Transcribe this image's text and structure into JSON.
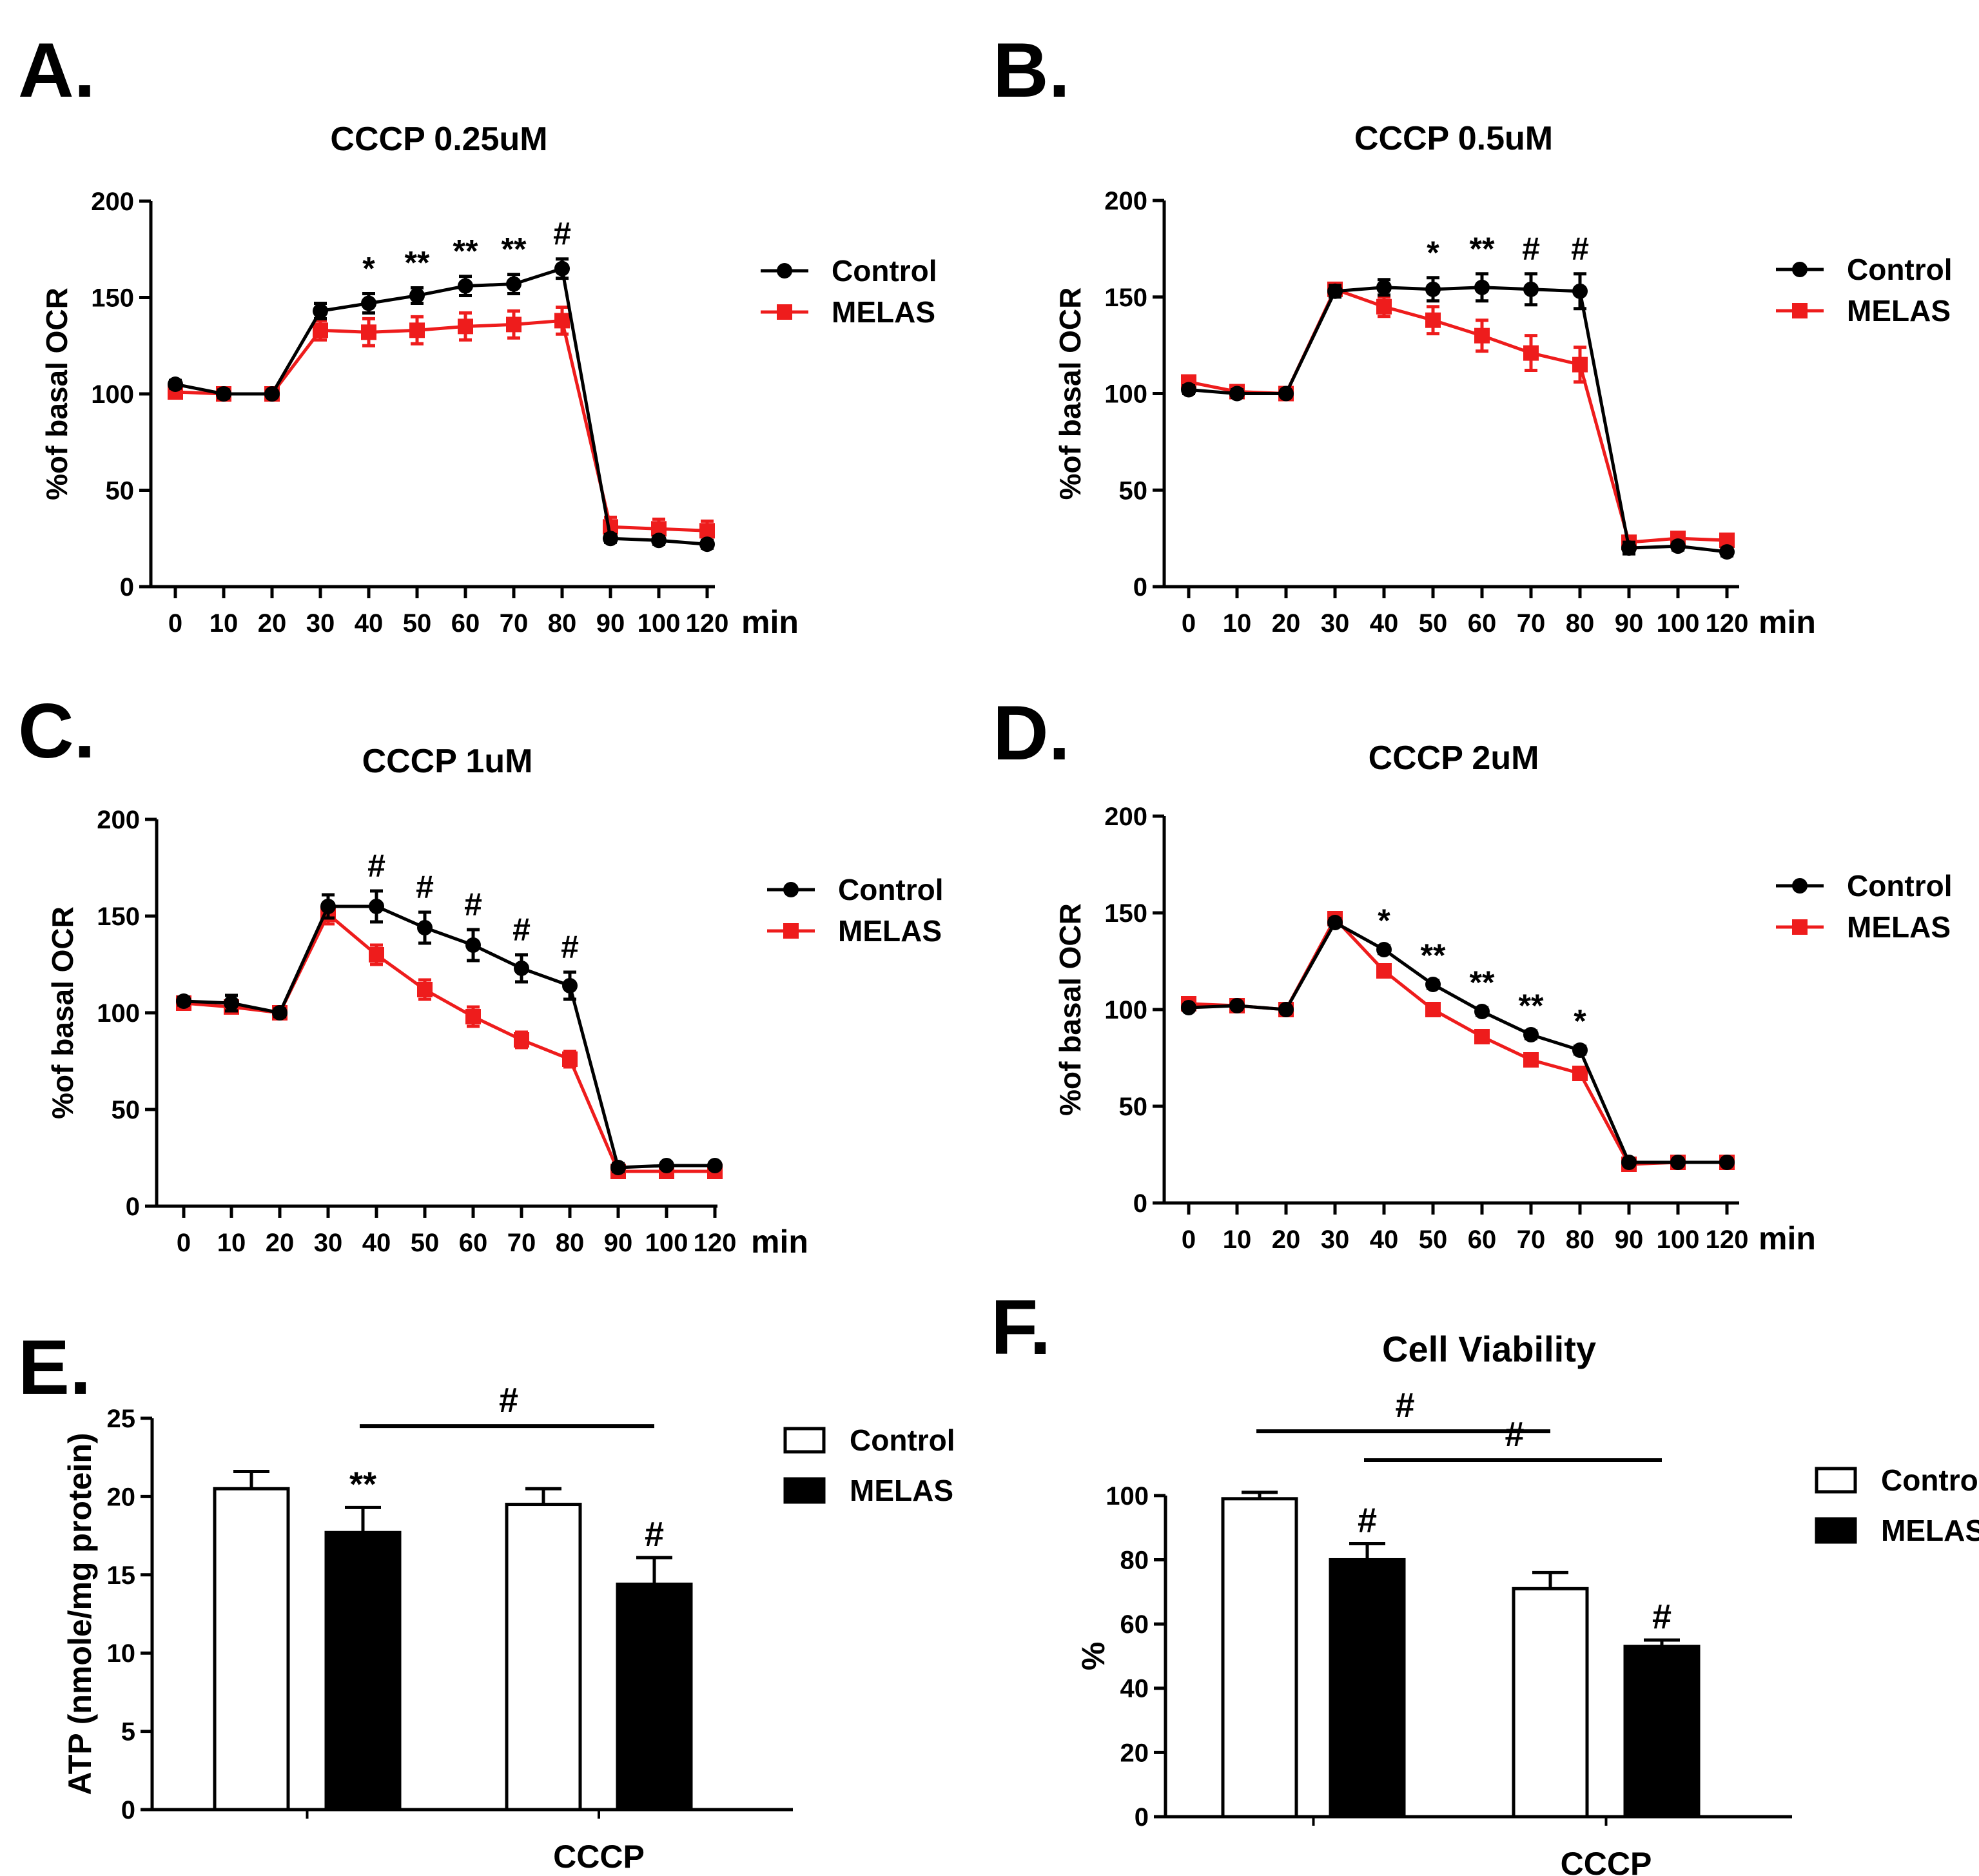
{
  "colors": {
    "control": "#000000",
    "melas": "#ee1c1c",
    "axis": "#000000",
    "bar_control_fill": "#ffffff",
    "bar_melas_fill": "#000000"
  },
  "chart_data": [
    {
      "id": "A",
      "panel_label": "A.",
      "type": "line",
      "title": "CCCP 0.25uM",
      "ylabel": "%of basal OCR",
      "xlabel": "min",
      "x": [
        0,
        10,
        20,
        30,
        40,
        50,
        60,
        70,
        80,
        90,
        100,
        120
      ],
      "xticklabels": [
        "0",
        "10",
        "20",
        "30",
        "40",
        "50",
        "60",
        "70",
        "80",
        "90",
        "100",
        "120"
      ],
      "ylim": [
        0,
        200
      ],
      "yticks": [
        0,
        50,
        100,
        150,
        200
      ],
      "legend": [
        "Control",
        "MELAS"
      ],
      "series": [
        {
          "name": "Control",
          "values": [
            105,
            100,
            100,
            143,
            147,
            151,
            156,
            157,
            165,
            25,
            24,
            22
          ],
          "errors": [
            2,
            2,
            1,
            4,
            5,
            4,
            5,
            5,
            5,
            2,
            2,
            2
          ]
        },
        {
          "name": "MELAS",
          "values": [
            101,
            100,
            100,
            133,
            132,
            133,
            135,
            136,
            138,
            31,
            30,
            29
          ],
          "errors": [
            2,
            2,
            2,
            5,
            7,
            7,
            7,
            7,
            7,
            5,
            5,
            5
          ]
        }
      ],
      "annotations": [
        {
          "x": 40,
          "text": "*"
        },
        {
          "x": 50,
          "text": "**"
        },
        {
          "x": 60,
          "text": "**"
        },
        {
          "x": 70,
          "text": "**"
        },
        {
          "x": 80,
          "text": "#"
        }
      ]
    },
    {
      "id": "B",
      "panel_label": "B.",
      "type": "line",
      "title": "CCCP 0.5uM",
      "ylabel": "%of basal OCR",
      "xlabel": "min",
      "x": [
        0,
        10,
        20,
        30,
        40,
        50,
        60,
        70,
        80,
        90,
        100,
        120
      ],
      "xticklabels": [
        "0",
        "10",
        "20",
        "30",
        "40",
        "50",
        "60",
        "70",
        "80",
        "90",
        "100",
        "120"
      ],
      "ylim": [
        0,
        200
      ],
      "yticks": [
        0,
        50,
        100,
        150,
        200
      ],
      "legend": [
        "Control",
        "MELAS"
      ],
      "series": [
        {
          "name": "Control",
          "values": [
            102,
            100,
            100,
            153,
            155,
            154,
            155,
            154,
            153,
            20,
            21,
            18
          ],
          "errors": [
            2,
            2,
            1,
            3,
            4,
            6,
            7,
            8,
            9,
            3,
            2,
            2
          ]
        },
        {
          "name": "MELAS",
          "values": [
            106,
            101,
            100,
            154,
            145,
            138,
            130,
            121,
            115,
            23,
            25,
            24
          ],
          "errors": [
            2,
            2,
            2,
            3,
            5,
            7,
            8,
            9,
            9,
            3,
            2,
            2
          ]
        }
      ],
      "annotations": [
        {
          "x": 50,
          "text": "*"
        },
        {
          "x": 60,
          "text": "**"
        },
        {
          "x": 70,
          "text": "#"
        },
        {
          "x": 80,
          "text": "#"
        }
      ]
    },
    {
      "id": "C",
      "panel_label": "C.",
      "type": "line",
      "title": "CCCP 1uM",
      "ylabel": "%of basal OCR",
      "xlabel": "min",
      "x": [
        0,
        10,
        20,
        30,
        40,
        50,
        60,
        70,
        80,
        90,
        100,
        120
      ],
      "xticklabels": [
        "0",
        "10",
        "20",
        "30",
        "40",
        "50",
        "60",
        "70",
        "80",
        "90",
        "100",
        "120"
      ],
      "ylim": [
        0,
        200
      ],
      "yticks": [
        0,
        50,
        100,
        150,
        200
      ],
      "legend": [
        "Control",
        "MELAS"
      ],
      "series": [
        {
          "name": "Control",
          "values": [
            106,
            105,
            100,
            155,
            155,
            144,
            135,
            123,
            114,
            20,
            21,
            21
          ],
          "errors": [
            2,
            4,
            2,
            6,
            8,
            8,
            8,
            7,
            7,
            2,
            1,
            1
          ]
        },
        {
          "name": "MELAS",
          "values": [
            105,
            103,
            100,
            151,
            130,
            112,
            98,
            86,
            76,
            18,
            18,
            18
          ],
          "errors": [
            2,
            3,
            2,
            5,
            5,
            5,
            5,
            4,
            4,
            2,
            1,
            1
          ]
        }
      ],
      "annotations": [
        {
          "x": 40,
          "text": "#"
        },
        {
          "x": 50,
          "text": "#"
        },
        {
          "x": 60,
          "text": "#"
        },
        {
          "x": 70,
          "text": "#"
        },
        {
          "x": 80,
          "text": "#"
        }
      ]
    },
    {
      "id": "D",
      "panel_label": "D.",
      "type": "line",
      "title": "CCCP 2uM",
      "ylabel": "%of basal OCR",
      "xlabel": "min",
      "x": [
        0,
        10,
        20,
        30,
        40,
        50,
        60,
        70,
        80,
        90,
        100,
        120
      ],
      "xticklabels": [
        "0",
        "10",
        "20",
        "30",
        "40",
        "50",
        "60",
        "70",
        "80",
        "90",
        "100",
        "120"
      ],
      "ylim": [
        0,
        200
      ],
      "yticks": [
        0,
        50,
        100,
        150,
        200
      ],
      "legend": [
        "Control",
        "MELAS"
      ],
      "series": [
        {
          "name": "Control",
          "values": [
            101,
            102,
            100,
            145,
            131,
            113,
            99,
            87,
            79,
            21,
            21,
            21
          ],
          "errors": [
            1,
            1,
            1,
            2,
            2,
            2,
            2,
            2,
            2,
            1,
            1,
            1
          ]
        },
        {
          "name": "MELAS",
          "values": [
            103,
            102,
            100,
            147,
            120,
            100,
            86,
            74,
            67,
            20,
            21,
            21
          ],
          "errors": [
            2,
            2,
            1,
            2,
            3,
            3,
            3,
            3,
            3,
            3,
            2,
            2
          ]
        }
      ],
      "annotations": [
        {
          "x": 40,
          "text": "*"
        },
        {
          "x": 50,
          "text": "**"
        },
        {
          "x": 60,
          "text": "**"
        },
        {
          "x": 70,
          "text": "**"
        },
        {
          "x": 80,
          "text": "*"
        }
      ]
    },
    {
      "id": "E",
      "panel_label": "E.",
      "type": "bar",
      "title": "",
      "ylabel": "ATP (nmole/mg protein)",
      "categories": [
        "",
        "CCCP"
      ],
      "ylim": [
        0,
        25
      ],
      "yticks": [
        0,
        5,
        10,
        15,
        20,
        25
      ],
      "legend": [
        "Control",
        "MELAS"
      ],
      "series": [
        {
          "name": "Control",
          "values": [
            20.5,
            19.5
          ],
          "errors": [
            1.1,
            1.0
          ]
        },
        {
          "name": "MELAS",
          "values": [
            17.7,
            14.4
          ],
          "errors": [
            1.6,
            1.7
          ]
        }
      ],
      "bar_annotations": [
        {
          "category": 0,
          "series": 1,
          "text": "**"
        },
        {
          "category": 1,
          "series": 1,
          "text": "#"
        }
      ],
      "brackets": [
        {
          "from_category": 0,
          "from_series": 1,
          "to_category": 1,
          "to_series": 1,
          "level": 24.5,
          "text": "#"
        }
      ]
    },
    {
      "id": "F",
      "panel_label": "F.",
      "type": "bar",
      "title": "Cell Viability",
      "ylabel": "%",
      "categories": [
        "",
        "CCCP"
      ],
      "ylim": [
        0,
        110
      ],
      "yticks": [
        0,
        20,
        40,
        60,
        80,
        100
      ],
      "legend": [
        "Control",
        "MELAS"
      ],
      "series": [
        {
          "name": "Control",
          "values": [
            99,
            71
          ],
          "errors": [
            2,
            5
          ]
        },
        {
          "name": "MELAS",
          "values": [
            80,
            53
          ],
          "errors": [
            5,
            2
          ]
        }
      ],
      "bar_annotations": [
        {
          "category": 0,
          "series": 1,
          "text": "#"
        },
        {
          "category": 1,
          "series": 1,
          "text": "#"
        }
      ],
      "brackets": [
        {
          "from_category": 0,
          "from_series": 0,
          "to_category": 1,
          "to_series": 0,
          "level": 120,
          "text": "#"
        },
        {
          "from_category": 0,
          "from_series": 1,
          "to_category": 1,
          "to_series": 1,
          "level": 111,
          "text": "#"
        }
      ]
    }
  ]
}
